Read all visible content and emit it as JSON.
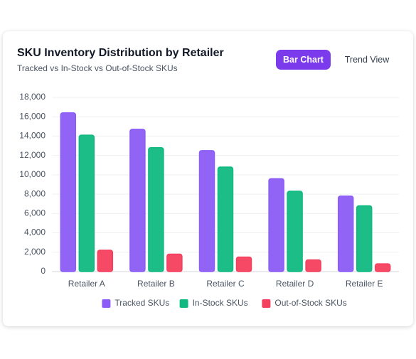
{
  "chart_data": {
    "type": "bar",
    "title": "SKU Inventory Distribution by Retailer",
    "subtitle": "Tracked vs In-Stock vs Out-of-Stock SKUs",
    "categories": [
      "Retailer A",
      "Retailer B",
      "Retailer C",
      "Retailer D",
      "Retailer E"
    ],
    "series": [
      {
        "name": "Tracked SKUs",
        "color": "#8b5cf6",
        "values": [
          16400,
          14700,
          12500,
          9600,
          7800
        ]
      },
      {
        "name": "In-Stock SKUs",
        "color": "#10b981",
        "values": [
          14100,
          12800,
          10800,
          8300,
          6800
        ]
      },
      {
        "name": "Out-of-Stock SKUs",
        "color": "#f43f5e",
        "values": [
          2200,
          1800,
          1500,
          1200,
          800
        ]
      }
    ],
    "ylim": [
      0,
      18000
    ],
    "yticks": [
      0,
      {
        "value": 2000,
        "label": "2,000"
      },
      {
        "value": 4000,
        "label": "4,000"
      },
      {
        "value": 6000,
        "label": "6,000"
      },
      {
        "value": 8000,
        "label": "8,000"
      },
      {
        "value": 10000,
        "label": "10,000"
      },
      {
        "value": 12000,
        "label": "12,000"
      },
      {
        "value": 14000,
        "label": "14,000"
      },
      {
        "value": 16000,
        "label": "16,000"
      },
      {
        "value": 18000,
        "label": "18,000"
      }
    ],
    "grid": true,
    "legend": "bottom"
  },
  "controls": [
    "Bar Chart",
    "Trend View"
  ]
}
